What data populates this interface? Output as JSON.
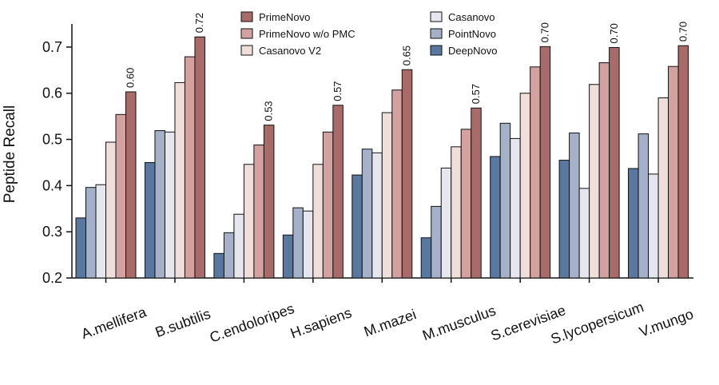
{
  "chart_data": {
    "type": "bar",
    "ylabel": "Peptide Recall",
    "ylim": [
      0.2,
      0.75
    ],
    "yticks": [
      "0.2",
      "0.3",
      "0.4",
      "0.5",
      "0.6",
      "0.7"
    ],
    "grid": false,
    "legend_position": "top-center",
    "categories": [
      "A.mellifera",
      "B.subtilis",
      "C.endoloripes",
      "H.sapiens",
      "M.mazei",
      "M.musculus",
      "S.cerevisiae",
      "S.lycopersicum",
      "V.mungo"
    ],
    "series": [
      {
        "name": "DeepNovo",
        "color": "#5a77a0",
        "values": [
          0.33,
          0.45,
          0.253,
          0.293,
          0.423,
          0.287,
          0.463,
          0.455,
          0.437
        ]
      },
      {
        "name": "PointNovo",
        "color": "#a5b1c8",
        "values": [
          0.396,
          0.519,
          0.298,
          0.352,
          0.479,
          0.355,
          0.535,
          0.514,
          0.512
        ]
      },
      {
        "name": "Casanovo",
        "color": "#e5e6ee",
        "values": [
          0.402,
          0.516,
          0.338,
          0.345,
          0.471,
          0.438,
          0.502,
          0.394,
          0.425
        ]
      },
      {
        "name": "Casanovo V2",
        "color": "#f0dedb",
        "values": [
          0.494,
          0.623,
          0.446,
          0.446,
          0.558,
          0.484,
          0.6,
          0.619,
          0.59
        ]
      },
      {
        "name": "PrimeNovo w/o PMC",
        "color": "#d3a1a0",
        "values": [
          0.554,
          0.679,
          0.488,
          0.516,
          0.607,
          0.522,
          0.657,
          0.666,
          0.658
        ]
      },
      {
        "name": "PrimeNovo",
        "color": "#a86b69",
        "values": [
          0.603,
          0.722,
          0.531,
          0.574,
          0.651,
          0.568,
          0.701,
          0.699,
          0.703
        ]
      }
    ],
    "data_labels": [
      "0.60",
      "0.72",
      "0.53",
      "0.57",
      "0.65",
      "0.57",
      "0.70",
      "0.70",
      "0.70"
    ],
    "legend_columns": [
      [
        "PrimeNovo",
        "PrimeNovo w/o PMC",
        "Casanovo V2"
      ],
      [
        "Casanovo",
        "PointNovo",
        "DeepNovo"
      ]
    ]
  }
}
